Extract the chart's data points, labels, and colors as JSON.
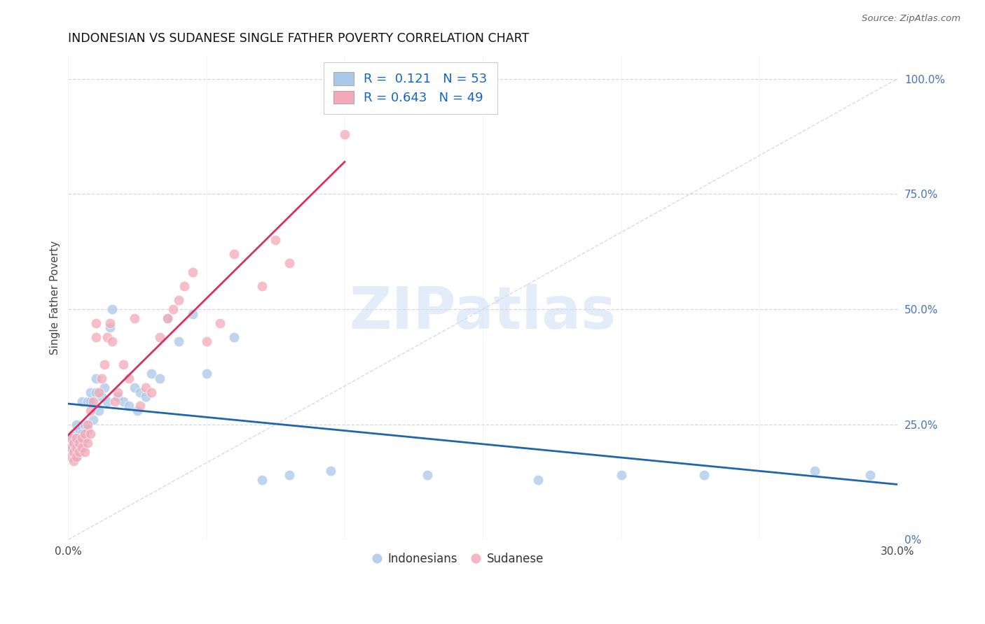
{
  "title": "INDONESIAN VS SUDANESE SINGLE FATHER POVERTY CORRELATION CHART",
  "source": "Source: ZipAtlas.com",
  "ylabel": "Single Father Poverty",
  "xlim": [
    0.0,
    0.3
  ],
  "ylim": [
    0.0,
    1.05
  ],
  "xtick_positions": [
    0.0,
    0.05,
    0.1,
    0.15,
    0.2,
    0.25,
    0.3
  ],
  "xtick_labels": [
    "0.0%",
    "",
    "",
    "",
    "",
    "",
    "30.0%"
  ],
  "ytick_positions": [
    0.0,
    0.25,
    0.5,
    0.75,
    1.0
  ],
  "ytick_labels": [
    "0%",
    "25.0%",
    "50.0%",
    "75.0%",
    "100.0%"
  ],
  "legend_r_blue": "0.121",
  "legend_n_blue": "53",
  "legend_r_pink": "0.643",
  "legend_n_pink": "49",
  "blue_scatter_color": "#aac8e8",
  "pink_scatter_color": "#f4a8b8",
  "blue_line_color": "#2166ac",
  "pink_line_color": "#d63060",
  "diag_line_color": "#cccccc",
  "watermark_color": "#cddff5",
  "blue_x": [
    0.001,
    0.001,
    0.002,
    0.002,
    0.002,
    0.003,
    0.003,
    0.003,
    0.003,
    0.004,
    0.004,
    0.004,
    0.005,
    0.005,
    0.005,
    0.006,
    0.006,
    0.007,
    0.007,
    0.008,
    0.008,
    0.009,
    0.01,
    0.01,
    0.011,
    0.012,
    0.013,
    0.014,
    0.015,
    0.016,
    0.018,
    0.02,
    0.022,
    0.024,
    0.025,
    0.026,
    0.028,
    0.03,
    0.033,
    0.036,
    0.04,
    0.045,
    0.05,
    0.06,
    0.07,
    0.08,
    0.095,
    0.13,
    0.17,
    0.2,
    0.23,
    0.27,
    0.29
  ],
  "blue_y": [
    0.2,
    0.22,
    0.19,
    0.21,
    0.23,
    0.18,
    0.2,
    0.22,
    0.25,
    0.2,
    0.22,
    0.24,
    0.21,
    0.23,
    0.3,
    0.22,
    0.25,
    0.24,
    0.3,
    0.3,
    0.32,
    0.26,
    0.35,
    0.32,
    0.28,
    0.31,
    0.33,
    0.3,
    0.46,
    0.5,
    0.31,
    0.3,
    0.29,
    0.33,
    0.28,
    0.32,
    0.31,
    0.36,
    0.35,
    0.48,
    0.43,
    0.49,
    0.36,
    0.44,
    0.13,
    0.14,
    0.15,
    0.14,
    0.13,
    0.14,
    0.14,
    0.15,
    0.14
  ],
  "pink_x": [
    0.001,
    0.001,
    0.001,
    0.002,
    0.002,
    0.002,
    0.003,
    0.003,
    0.003,
    0.004,
    0.004,
    0.005,
    0.005,
    0.006,
    0.006,
    0.007,
    0.007,
    0.008,
    0.008,
    0.009,
    0.01,
    0.01,
    0.011,
    0.012,
    0.013,
    0.014,
    0.015,
    0.016,
    0.017,
    0.018,
    0.02,
    0.022,
    0.024,
    0.026,
    0.028,
    0.03,
    0.033,
    0.036,
    0.038,
    0.04,
    0.042,
    0.045,
    0.05,
    0.055,
    0.06,
    0.07,
    0.075,
    0.08,
    0.1
  ],
  "pink_y": [
    0.18,
    0.2,
    0.22,
    0.17,
    0.19,
    0.21,
    0.18,
    0.2,
    0.22,
    0.19,
    0.21,
    0.2,
    0.22,
    0.19,
    0.23,
    0.21,
    0.25,
    0.23,
    0.28,
    0.3,
    0.44,
    0.47,
    0.32,
    0.35,
    0.38,
    0.44,
    0.47,
    0.43,
    0.3,
    0.32,
    0.38,
    0.35,
    0.48,
    0.29,
    0.33,
    0.32,
    0.44,
    0.48,
    0.5,
    0.52,
    0.55,
    0.58,
    0.43,
    0.47,
    0.62,
    0.55,
    0.65,
    0.6,
    0.88
  ]
}
